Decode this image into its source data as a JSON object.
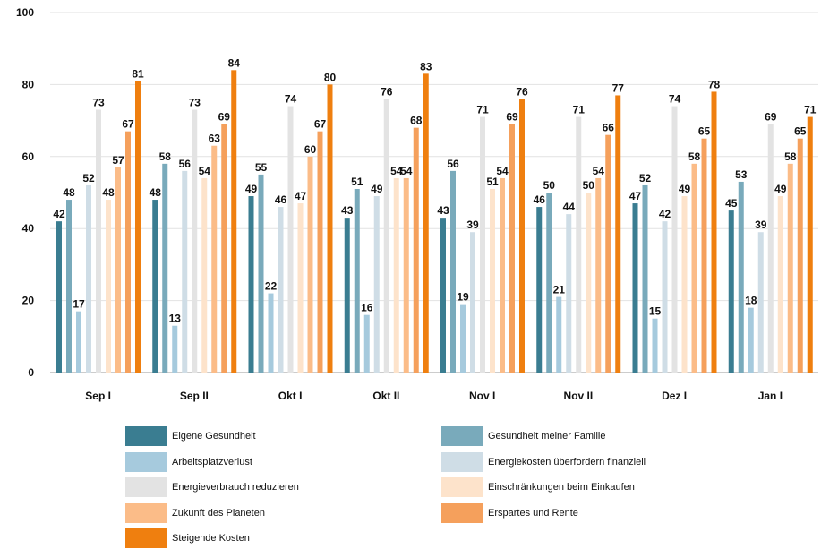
{
  "chart_data": {
    "type": "bar",
    "categories": [
      "Sep I",
      "Sep II",
      "Okt I",
      "Okt II",
      "Nov I",
      "Nov II",
      "Dez I",
      "Jan I"
    ],
    "ylim": [
      0,
      100
    ],
    "yticks": [
      0,
      20,
      40,
      60,
      80,
      100
    ],
    "grid": "horizontal",
    "legend_position": "bottom",
    "series": [
      {
        "name": "Eigene Gesundheit",
        "color": "#3a7d91",
        "values": [
          42,
          48,
          49,
          43,
          43,
          46,
          47,
          45
        ]
      },
      {
        "name": "Gesundheit meiner Familie",
        "color": "#79aabb",
        "values": [
          48,
          58,
          55,
          51,
          56,
          50,
          52,
          53
        ]
      },
      {
        "name": "Arbeitsplatzverlust",
        "color": "#a6cadd",
        "values": [
          17,
          13,
          22,
          16,
          19,
          21,
          15,
          18
        ]
      },
      {
        "name": "Energiekosten überfordern finanziell",
        "color": "#cfdde6",
        "values": [
          52,
          56,
          46,
          49,
          39,
          44,
          42,
          39
        ]
      },
      {
        "name": "Energieverbrauch reduzieren",
        "color": "#e3e3e3",
        "values": [
          73,
          73,
          74,
          76,
          71,
          71,
          74,
          69
        ]
      },
      {
        "name": "Einschränkungen beim Einkaufen",
        "color": "#fde3cb",
        "values": [
          48,
          54,
          47,
          54,
          51,
          50,
          49,
          49
        ]
      },
      {
        "name": "Zukunft des Planeten",
        "color": "#fbbc88",
        "values": [
          57,
          63,
          60,
          54,
          54,
          54,
          58,
          58
        ]
      },
      {
        "name": "Erspartes und Rente",
        "color": "#f5a05c",
        "values": [
          67,
          69,
          67,
          68,
          69,
          66,
          65,
          65
        ]
      },
      {
        "name": "Steigende Kosten",
        "color": "#ef7f0f",
        "values": [
          81,
          84,
          80,
          83,
          76,
          77,
          78,
          71
        ]
      }
    ]
  }
}
